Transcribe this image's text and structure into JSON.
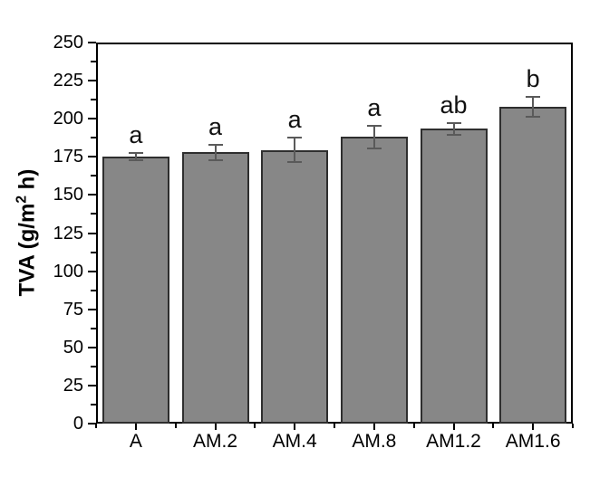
{
  "chart_data": {
    "type": "bar",
    "title": "",
    "xlabel": "",
    "ylabel": {
      "prefix": "TVA (g/m",
      "sup": "2",
      "suffix": " h)"
    },
    "categories": [
      "A",
      "AM.2",
      "AM.4",
      "AM.8",
      "AM1.2",
      "AM1.6"
    ],
    "values": [
      175,
      178,
      179.5,
      188,
      193.5,
      208
    ],
    "errors": [
      3,
      5.5,
      8.5,
      8,
      4.5,
      7
    ],
    "sig_letters": [
      "a",
      "a",
      "a",
      "a",
      "ab",
      "b"
    ],
    "ylim": [
      0,
      250
    ],
    "ytick_step": 25,
    "yminor_step": 12.5,
    "ytick_labels": [
      "0",
      "25",
      "50",
      "75",
      "100",
      "125",
      "150",
      "175",
      "200",
      "225",
      "250"
    ],
    "grid": false,
    "legend": false,
    "colors": {
      "bar_fill": "#878787",
      "bar_edge": "#2e2e2e",
      "error_bar": "#5a5a5a",
      "axis": "#000000",
      "text": "#000000",
      "background": "#ffffff"
    }
  }
}
